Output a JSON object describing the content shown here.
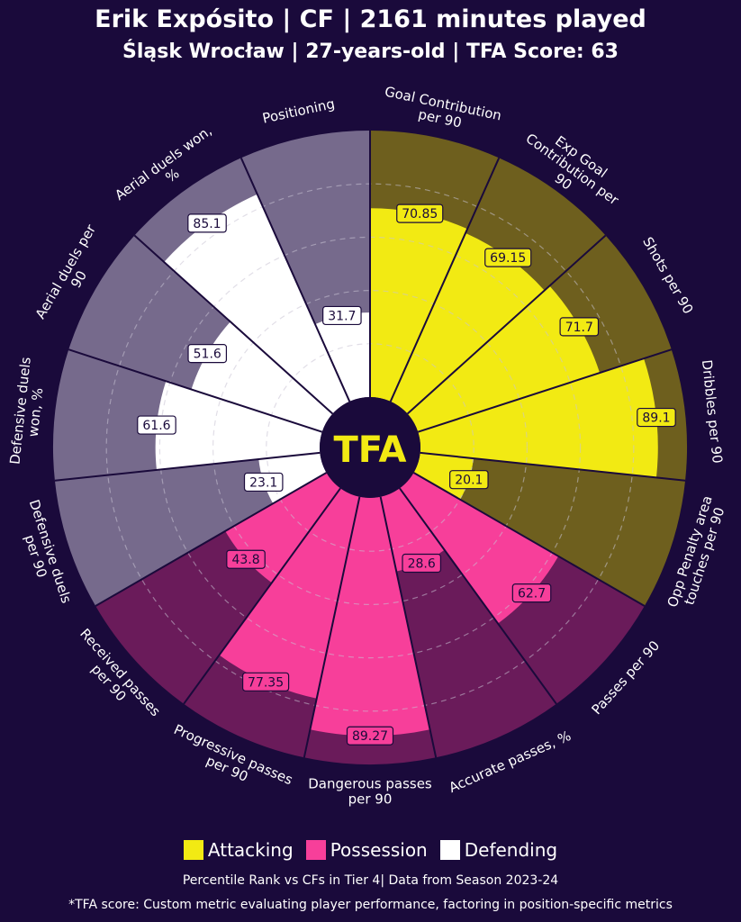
{
  "header": {
    "title": "Erik Expósito | CF | 2161 minutes played",
    "subtitle": "Śląsk Wrocław | 27-years-old | TFA Score: 63"
  },
  "logo": "TFA",
  "colors": {
    "background": "#1a0a3b",
    "attacking": "#f2ea13",
    "attacking_bg": "#6e5f1e",
    "possession": "#f73f9a",
    "possession_bg": "#6a1b5a",
    "defending": "#ffffff",
    "defending_bg": "#766a8c"
  },
  "legend": [
    {
      "label": "Attacking",
      "color": "#f2ea13"
    },
    {
      "label": "Possession",
      "color": "#f73f9a"
    },
    {
      "label": "Defending",
      "color": "#ffffff"
    }
  ],
  "footer": {
    "note": "Percentile Rank vs CFs in Tier 4| Data from Season 2023-24",
    "footnote": "*TFA score: Custom metric evaluating player performance, factoring in position-specific metrics"
  },
  "chart_data": {
    "type": "pie",
    "subtype": "pizza / radial percentile",
    "scale": [
      0,
      100
    ],
    "gridlines": [
      20,
      40,
      60,
      80
    ],
    "metrics": [
      {
        "label": "Goal Contribution per 90",
        "value": 70.85,
        "category": "Attacking"
      },
      {
        "label": "Exp Goal Contribution per 90",
        "value": 69.15,
        "category": "Attacking"
      },
      {
        "label": "Shots per 90",
        "value": 71.7,
        "category": "Attacking"
      },
      {
        "label": "Dribbles per 90",
        "value": 89.1,
        "category": "Attacking"
      },
      {
        "label": "Opp Penalty area touches per 90",
        "value": 20.1,
        "category": "Attacking"
      },
      {
        "label": "Passes per 90",
        "value": 62.7,
        "category": "Possession"
      },
      {
        "label": "Accurate passes, %",
        "value": 28.6,
        "category": "Possession"
      },
      {
        "label": "Dangerous passes per 90",
        "value": 89.27,
        "category": "Possession"
      },
      {
        "label": "Progressive passes per 90",
        "value": 77.35,
        "category": "Possession"
      },
      {
        "label": "Received passes per 90",
        "value": 43.8,
        "category": "Possession"
      },
      {
        "label": "Defensive duels per 90",
        "value": 23.1,
        "category": "Defending"
      },
      {
        "label": "Defensive duels won, %",
        "value": 61.6,
        "category": "Defending"
      },
      {
        "label": "Aerial duels per 90",
        "value": 51.6,
        "category": "Defending"
      },
      {
        "label": "Aerial duels won, %",
        "value": 85.1,
        "category": "Defending"
      },
      {
        "label": "Positioning",
        "value": 31.7,
        "category": "Defending"
      }
    ]
  }
}
